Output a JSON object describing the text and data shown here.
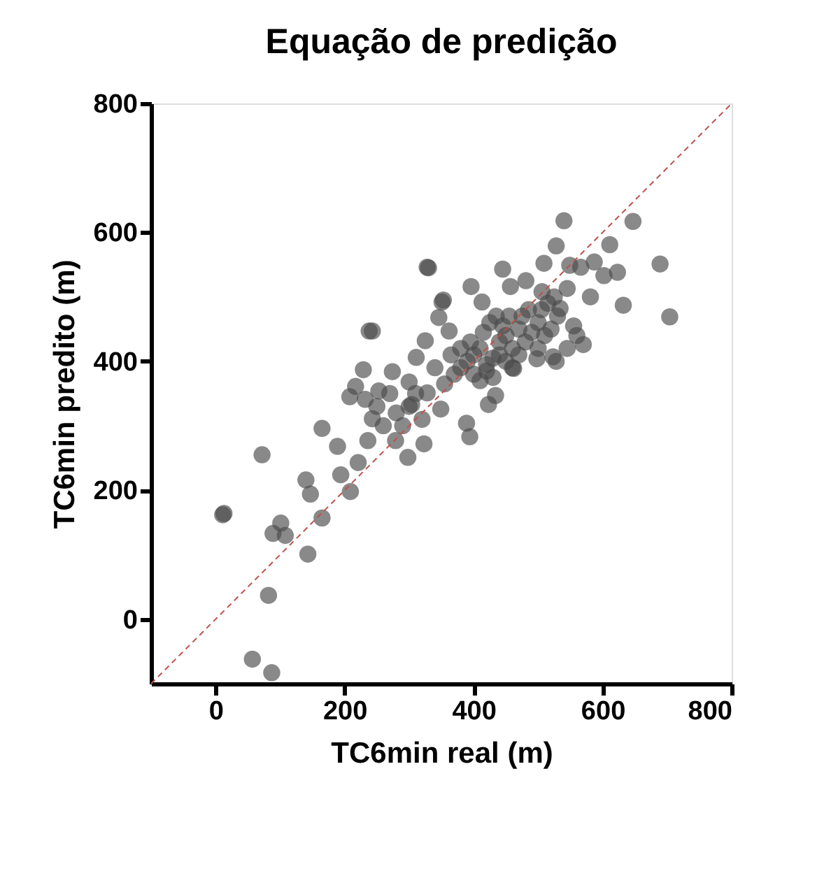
{
  "chart_data": {
    "type": "scatter",
    "title": "Equação de predição",
    "xlabel": "TC6min real (m)",
    "ylabel": "TC6min predito (m)",
    "xlim": [
      -100,
      800
    ],
    "ylim": [
      -100,
      800
    ],
    "xticks": [
      0,
      200,
      400,
      600,
      800
    ],
    "yticks": [
      0,
      200,
      400,
      600,
      800
    ],
    "grid": false,
    "series": [
      {
        "color": "#4a4a4a",
        "marker": "circle",
        "x": [
          13,
          72,
          82,
          57,
          87,
          11,
          101,
          89,
          108,
          143,
          140,
          147,
          165,
          165,
          189,
          194,
          209,
          221,
          238,
          229,
          217,
          208,
          232,
          243,
          236,
          253,
          274,
          279,
          298,
          300,
          311,
          325,
          330,
          323,
          328,
          349,
          346,
          351,
          304,
          540,
          647,
          528,
          611,
          328,
          445,
          509,
          549,
          587,
          566,
          623,
          602,
          689,
          704,
          632,
          581,
          545,
          506,
          534,
          555,
          570,
          523,
          396,
          353,
          481,
          457,
          413,
          243,
          362,
          389,
          394,
          423,
          434,
          462,
          498,
          528,
          380,
          390,
          400,
          410,
          420,
          430,
          440,
          450,
          460,
          470,
          480,
          490,
          500,
          510,
          400,
          410,
          420,
          430,
          440,
          450,
          460,
          470,
          380,
          370,
          395,
          415,
          425,
          435,
          445,
          455,
          475,
          485,
          500,
          520,
          530,
          545,
          560,
          515,
          525,
          505,
          355,
          365,
          340,
          300,
          290,
          280,
          260,
          250,
          270,
          310,
          320
        ],
        "values": [
          164,
          255,
          37,
          -62,
          -83,
          162,
          149,
          133,
          130,
          101,
          216,
          194,
          157,
          296,
          268,
          224,
          198,
          243,
          447,
          387,
          361,
          345,
          341,
          311,
          277,
          354,
          384,
          277,
          251,
          368,
          406,
          432,
          545,
          272,
          351,
          326,
          468,
          492,
          333,
          618,
          617,
          579,
          581,
          546,
          543,
          552,
          549,
          554,
          546,
          538,
          533,
          551,
          469,
          487,
          500,
          513,
          508,
          482,
          455,
          426,
          407,
          516,
          495,
          525,
          516,
          492,
          447,
          447,
          304,
          283,
          333,
          347,
          389,
          404,
          400,
          390,
          400,
          410,
          420,
          395,
          405,
          430,
          440,
          420,
          450,
          430,
          445,
          460,
          440,
          380,
          370,
          385,
          375,
          410,
          400,
          390,
          410,
          420,
          380,
          430,
          445,
          460,
          470,
          455,
          470,
          470,
          480,
          420,
          450,
          470,
          420,
          440,
          490,
          500,
          480,
          365,
          410,
          390,
          330,
          300,
          320,
          300,
          330,
          350,
          350,
          310
        ]
      },
      {
        "type": "line",
        "color": "#c0504d",
        "line_style": "dashed",
        "x": [
          -100,
          800
        ],
        "values": [
          -100,
          800
        ]
      }
    ]
  }
}
